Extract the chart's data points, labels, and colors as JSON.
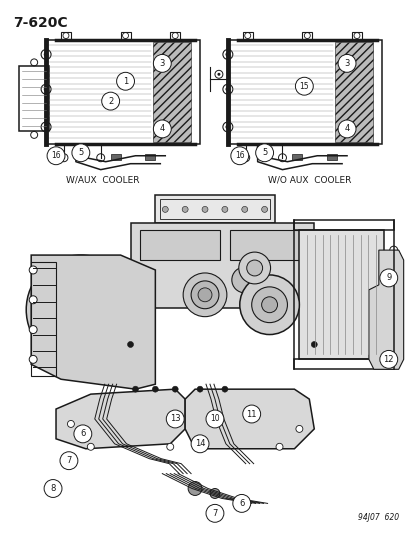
{
  "title": "7-620C",
  "footer": "94J07  620",
  "bg_color": "#ffffff",
  "text_color": "#1a1a1a",
  "dc": "#1a1a1a",
  "top_left_label": "W/AUX  COOLER",
  "top_right_label": "W/O AUX  COOLER",
  "figsize": [
    4.14,
    5.33
  ],
  "dpi": 100
}
